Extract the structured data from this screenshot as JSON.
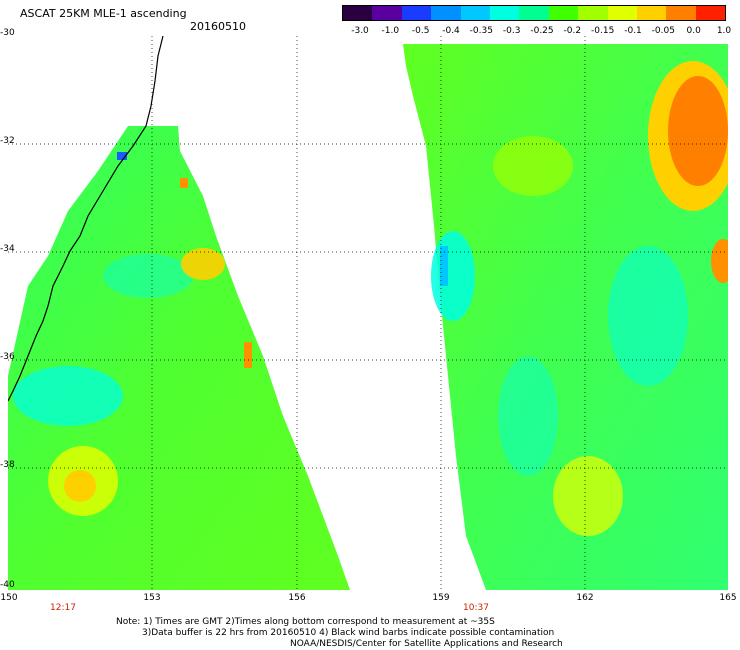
{
  "header": {
    "title": "ASCAT 25KM MLE-1 ascending",
    "date": "20160510"
  },
  "colorbar": {
    "ticks": [
      "-3.0",
      "-1.0",
      "-0.5",
      "-0.4",
      "-0.35",
      "-0.3",
      "-0.25",
      "-0.2",
      "-0.15",
      "-0.1",
      "-0.05",
      "0.0",
      "1.0"
    ],
    "colors": [
      "#2a0040",
      "#5a00a0",
      "#1a3cff",
      "#0090ff",
      "#00c8ff",
      "#00ffe0",
      "#00ff90",
      "#40ff00",
      "#a0ff00",
      "#e0ff00",
      "#ffd000",
      "#ff8000",
      "#ff2000"
    ]
  },
  "map": {
    "lat_labels": [
      "-30",
      "-32",
      "-34",
      "-36",
      "-38",
      "-40"
    ],
    "lon_labels": [
      "150",
      "153",
      "156",
      "159",
      "162",
      "165"
    ],
    "pass_times": [
      "12:17",
      "10:37"
    ]
  },
  "notes": [
    "Note: 1) Times are GMT 2)Times along bottom correspond to measurement at ~35S",
    "3)Data buffer is 22 hrs from 20160510 4) Black wind barbs indicate possible contamination",
    "NOAA/NESDIS/Center for Satellite Applications and Research"
  ]
}
